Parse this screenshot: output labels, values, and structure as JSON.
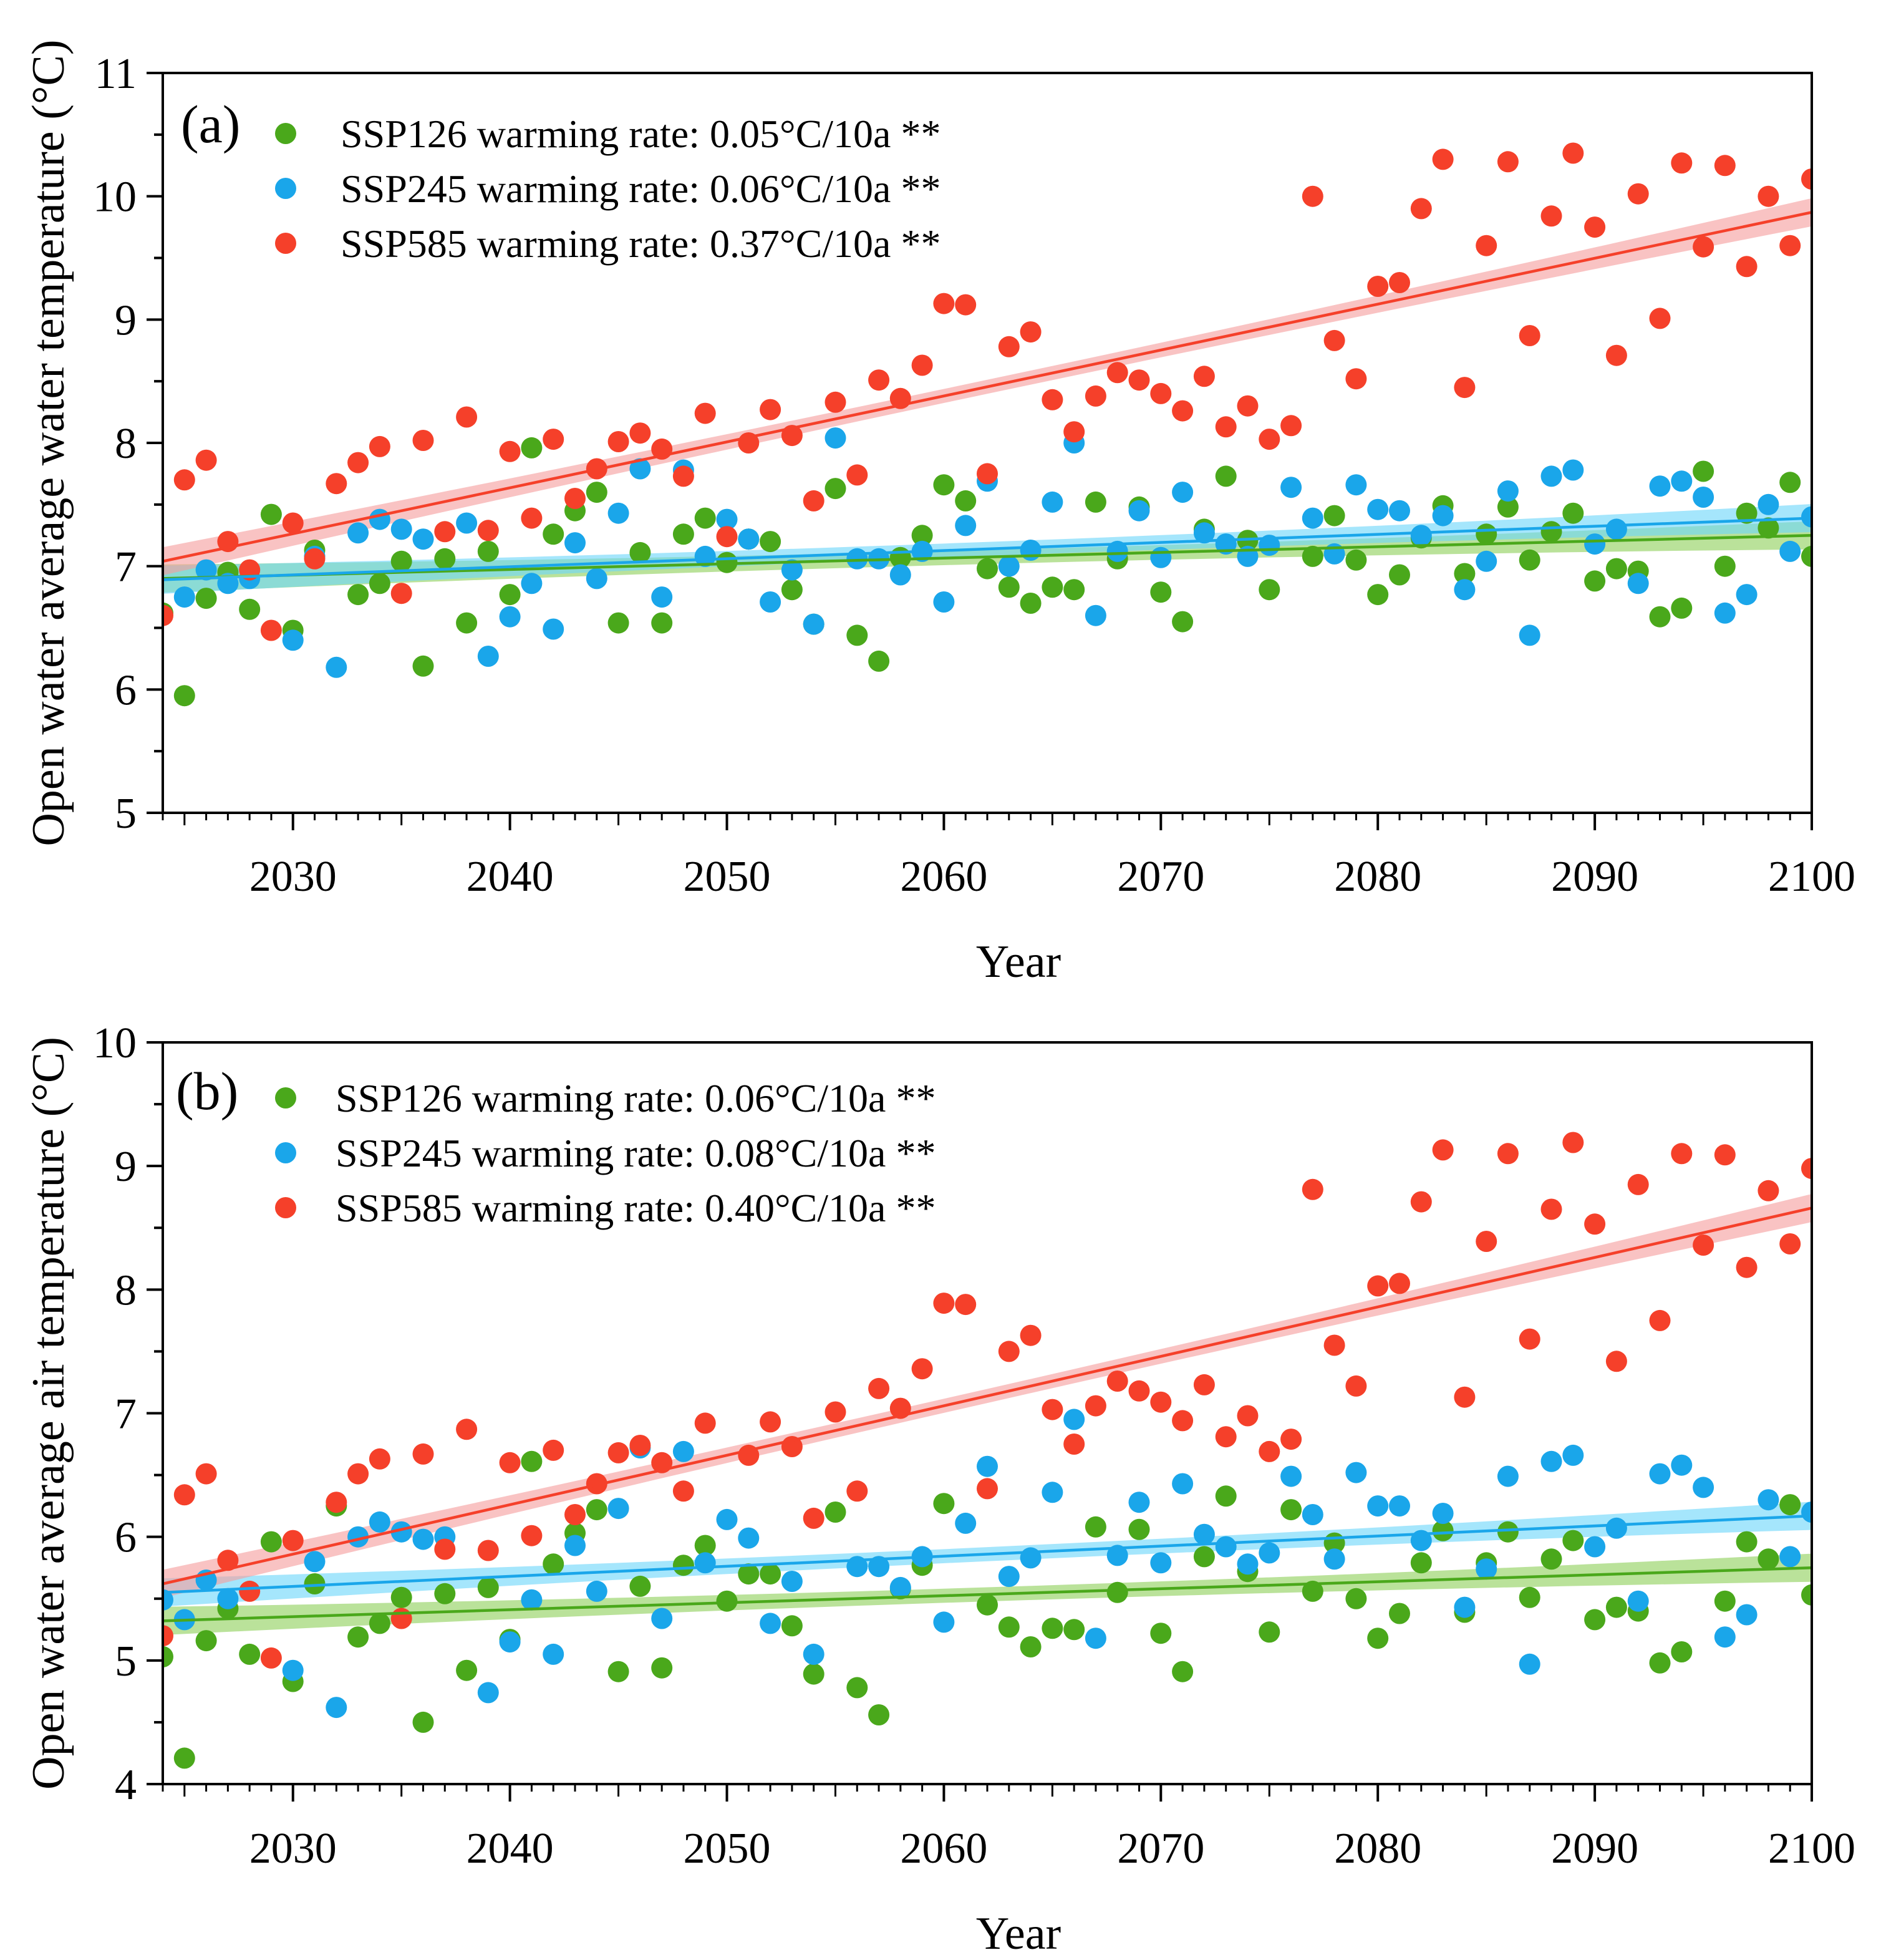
{
  "chart_data": [
    {
      "type": "scatter",
      "panel_label": "(a)",
      "xlabel": "Year",
      "ylabel": "Open water average water temperature (°C)",
      "xlim": [
        2024,
        2100
      ],
      "ylim": [
        5,
        11
      ],
      "xticks": [
        2030,
        2040,
        2050,
        2060,
        2070,
        2080,
        2090,
        2100
      ],
      "yticks": [
        5,
        6,
        7,
        8,
        9,
        10,
        11
      ],
      "legend_position": "top-left",
      "series": [
        {
          "name": "SSP126",
          "legend_label": "SSP126  warming rate: 0.05°C/10a **",
          "color": "#4aa81b",
          "band_color": "#8fd15c",
          "fit": {
            "start": 6.9,
            "end": 7.25
          },
          "x": [
            2024,
            2025,
            2026,
            2027,
            2028,
            2029,
            2030,
            2031,
            2033,
            2034,
            2035,
            2036,
            2037,
            2038,
            2039,
            2040,
            2041,
            2042,
            2043,
            2044,
            2045,
            2046,
            2047,
            2048,
            2049,
            2050,
            2051,
            2052,
            2053,
            2054,
            2055,
            2056,
            2057,
            2058,
            2059,
            2060,
            2061,
            2062,
            2063,
            2064,
            2065,
            2066,
            2067,
            2068,
            2069,
            2070,
            2071,
            2072,
            2073,
            2074,
            2075,
            2077,
            2078,
            2079,
            2080,
            2081,
            2082,
            2083,
            2084,
            2085,
            2086,
            2087,
            2088,
            2089,
            2090,
            2091,
            2092,
            2093,
            2094,
            2095,
            2096,
            2097,
            2098,
            2099,
            2100
          ],
          "y": [
            6.62,
            5.95,
            6.74,
            6.95,
            6.65,
            7.42,
            6.48,
            7.13,
            6.77,
            6.86,
            7.04,
            6.19,
            7.06,
            6.54,
            7.12,
            6.77,
            7.96,
            7.26,
            7.45,
            7.6,
            6.54,
            7.11,
            6.54,
            7.26,
            7.39,
            7.03,
            7.22,
            7.2,
            6.81,
            6.53,
            7.63,
            6.44,
            6.23,
            7.07,
            7.25,
            7.66,
            7.53,
            6.98,
            6.83,
            6.7,
            6.83,
            6.81,
            7.52,
            7.06,
            7.48,
            6.79,
            6.55,
            7.3,
            7.73,
            7.21,
            6.81,
            7.08,
            7.41,
            7.05,
            6.77,
            6.93,
            7.23,
            7.49,
            6.94,
            7.26,
            7.48,
            7.05,
            7.28,
            7.43,
            6.88,
            6.98,
            6.96,
            6.59,
            6.66,
            7.77,
            7.0,
            7.43,
            7.31,
            7.68,
            7.08
          ]
        },
        {
          "name": "SSP245",
          "legend_label": "SSP245  warming rate: 0.06°C/10a **",
          "color": "#1aa6ea",
          "band_color": "#6dd6fa",
          "fit": {
            "start": 6.89,
            "end": 7.39
          },
          "x": [
            2025,
            2026,
            2027,
            2028,
            2030,
            2031,
            2032,
            2033,
            2034,
            2035,
            2036,
            2038,
            2039,
            2040,
            2041,
            2042,
            2043,
            2044,
            2045,
            2046,
            2047,
            2048,
            2049,
            2050,
            2051,
            2052,
            2053,
            2054,
            2055,
            2056,
            2057,
            2058,
            2059,
            2060,
            2061,
            2062,
            2063,
            2064,
            2065,
            2066,
            2067,
            2068,
            2069,
            2070,
            2071,
            2072,
            2073,
            2074,
            2075,
            2076,
            2077,
            2078,
            2079,
            2080,
            2081,
            2082,
            2083,
            2084,
            2085,
            2086,
            2087,
            2088,
            2089,
            2090,
            2091,
            2092,
            2093,
            2094,
            2095,
            2096,
            2097,
            2098,
            2099,
            2100
          ],
          "y": [
            6.75,
            6.97,
            6.86,
            6.9,
            6.4,
            7.08,
            6.18,
            7.27,
            7.38,
            7.3,
            7.22,
            7.35,
            6.27,
            6.59,
            6.86,
            6.49,
            7.19,
            6.9,
            7.43,
            7.79,
            6.75,
            7.78,
            7.08,
            7.38,
            7.22,
            6.71,
            6.97,
            6.53,
            8.04,
            7.06,
            7.06,
            6.93,
            7.12,
            6.71,
            7.33,
            7.69,
            7.0,
            7.13,
            7.52,
            8.0,
            6.6,
            7.12,
            7.45,
            7.07,
            7.6,
            7.27,
            7.18,
            7.08,
            7.17,
            7.64,
            7.39,
            7.1,
            7.66,
            7.46,
            7.45,
            7.25,
            7.41,
            6.81,
            7.04,
            7.61,
            6.44,
            7.73,
            7.78,
            7.18,
            7.3,
            6.86,
            7.65,
            7.69,
            7.56,
            6.62,
            6.77,
            7.5,
            7.12,
            7.4
          ]
        },
        {
          "name": "SSP585",
          "legend_label": "SSP585  warming rate: 0.37°C/10a **",
          "color": "#f5402a",
          "band_color": "#f59e9e",
          "fit": {
            "start": 7.04,
            "end": 9.87
          },
          "x": [
            2024,
            2025,
            2026,
            2027,
            2028,
            2029,
            2030,
            2031,
            2032,
            2033,
            2034,
            2035,
            2036,
            2037,
            2038,
            2039,
            2040,
            2041,
            2042,
            2043,
            2044,
            2045,
            2046,
            2047,
            2048,
            2049,
            2050,
            2051,
            2052,
            2053,
            2054,
            2055,
            2056,
            2057,
            2058,
            2059,
            2060,
            2061,
            2062,
            2063,
            2064,
            2065,
            2066,
            2067,
            2068,
            2069,
            2070,
            2071,
            2072,
            2073,
            2074,
            2075,
            2076,
            2077,
            2078,
            2079,
            2080,
            2081,
            2082,
            2083,
            2084,
            2085,
            2086,
            2087,
            2088,
            2089,
            2090,
            2091,
            2092,
            2093,
            2094,
            2095,
            2096,
            2097,
            2098,
            2099,
            2100
          ],
          "y": [
            6.6,
            7.7,
            7.86,
            7.2,
            6.97,
            6.48,
            7.35,
            7.06,
            7.67,
            7.84,
            7.97,
            6.78,
            8.02,
            7.28,
            8.21,
            7.29,
            7.93,
            7.39,
            8.03,
            7.55,
            7.79,
            8.01,
            8.08,
            7.95,
            7.73,
            8.24,
            7.24,
            8.0,
            8.27,
            8.06,
            7.53,
            8.33,
            7.74,
            8.51,
            8.36,
            8.63,
            9.13,
            9.12,
            7.75,
            8.78,
            8.9,
            8.35,
            8.09,
            8.38,
            8.57,
            8.51,
            8.4,
            8.26,
            8.54,
            8.13,
            8.3,
            8.03,
            8.14,
            10.0,
            8.83,
            8.52,
            9.27,
            9.3,
            9.9,
            10.3,
            8.45,
            9.6,
            10.28,
            8.87,
            9.84,
            10.35,
            9.75,
            8.71,
            10.02,
            9.01,
            10.27,
            9.59,
            10.25,
            9.43,
            10.0,
            9.6,
            10.14
          ]
        }
      ]
    },
    {
      "type": "scatter",
      "panel_label": "(b)",
      "xlabel": "Year",
      "ylabel": "Open water average air temperature (°C)",
      "xlim": [
        2024,
        2100
      ],
      "ylim": [
        4,
        10
      ],
      "xticks": [
        2030,
        2040,
        2050,
        2060,
        2070,
        2080,
        2090,
        2100
      ],
      "yticks": [
        4,
        5,
        6,
        7,
        8,
        9,
        10
      ],
      "legend_position": "top-left",
      "series": [
        {
          "name": "SSP126",
          "legend_label": "SSP126  warming rate: 0.06°C/10a **",
          "color": "#4aa81b",
          "band_color": "#8fd15c",
          "fit": {
            "start": 5.32,
            "end": 5.75
          },
          "x": [
            2024,
            2025,
            2026,
            2027,
            2028,
            2029,
            2030,
            2031,
            2032,
            2033,
            2034,
            2035,
            2036,
            2037,
            2038,
            2039,
            2040,
            2041,
            2042,
            2043,
            2044,
            2045,
            2046,
            2047,
            2048,
            2049,
            2050,
            2051,
            2052,
            2053,
            2054,
            2055,
            2056,
            2057,
            2058,
            2059,
            2060,
            2062,
            2063,
            2064,
            2065,
            2066,
            2067,
            2068,
            2069,
            2070,
            2071,
            2072,
            2073,
            2074,
            2075,
            2076,
            2077,
            2078,
            2079,
            2080,
            2081,
            2082,
            2083,
            2084,
            2085,
            2086,
            2087,
            2088,
            2089,
            2090,
            2091,
            2092,
            2093,
            2094,
            2096,
            2097,
            2098,
            2099,
            2100
          ],
          "y": [
            5.03,
            4.21,
            5.16,
            5.42,
            5.05,
            5.96,
            4.83,
            5.62,
            6.25,
            5.19,
            5.3,
            5.51,
            4.5,
            5.54,
            4.92,
            5.59,
            5.17,
            6.61,
            5.78,
            6.03,
            6.22,
            4.91,
            5.6,
            4.94,
            5.77,
            5.93,
            5.48,
            5.7,
            5.7,
            5.28,
            4.89,
            6.2,
            4.78,
            4.56,
            5.58,
            5.77,
            6.27,
            5.45,
            5.27,
            5.11,
            5.26,
            5.25,
            6.08,
            5.55,
            6.06,
            5.22,
            4.91,
            5.84,
            6.33,
            5.72,
            5.23,
            6.22,
            5.56,
            5.95,
            5.5,
            5.18,
            5.38,
            5.79,
            6.05,
            5.39,
            5.79,
            6.04,
            5.51,
            5.82,
            5.97,
            5.33,
            5.43,
            5.4,
            4.98,
            5.07,
            5.48,
            5.96,
            5.82,
            6.26,
            5.53
          ]
        },
        {
          "name": "SSP245",
          "legend_label": "SSP245  warming rate: 0.08°C/10a **",
          "color": "#1aa6ea",
          "band_color": "#6dd6fa",
          "fit": {
            "start": 5.55,
            "end": 6.17
          },
          "x": [
            2024,
            2025,
            2026,
            2027,
            2030,
            2031,
            2032,
            2033,
            2034,
            2035,
            2036,
            2037,
            2039,
            2040,
            2041,
            2042,
            2043,
            2044,
            2045,
            2046,
            2047,
            2048,
            2049,
            2050,
            2051,
            2052,
            2053,
            2054,
            2056,
            2057,
            2058,
            2059,
            2060,
            2061,
            2062,
            2063,
            2064,
            2065,
            2066,
            2067,
            2068,
            2069,
            2070,
            2071,
            2072,
            2073,
            2074,
            2075,
            2076,
            2077,
            2078,
            2079,
            2080,
            2081,
            2082,
            2083,
            2084,
            2085,
            2086,
            2087,
            2088,
            2089,
            2090,
            2091,
            2092,
            2093,
            2094,
            2095,
            2096,
            2097,
            2098,
            2099,
            2100
          ],
          "y": [
            5.49,
            5.33,
            5.65,
            5.5,
            4.92,
            5.8,
            4.62,
            6.0,
            6.12,
            6.04,
            5.98,
            6.0,
            4.74,
            5.15,
            5.49,
            5.05,
            5.93,
            5.56,
            6.23,
            6.72,
            5.34,
            6.69,
            5.79,
            6.14,
            5.99,
            5.3,
            5.64,
            5.05,
            5.76,
            5.76,
            5.59,
            5.84,
            5.31,
            6.11,
            6.57,
            5.68,
            5.83,
            6.36,
            6.95,
            5.18,
            5.85,
            6.28,
            5.79,
            6.43,
            6.02,
            5.92,
            5.78,
            5.87,
            6.49,
            6.18,
            5.82,
            6.52,
            6.25,
            6.25,
            5.97,
            6.19,
            5.43,
            5.74,
            6.49,
            4.97,
            6.61,
            6.66,
            5.92,
            6.07,
            5.48,
            6.51,
            6.58,
            6.4,
            5.19,
            5.37,
            6.3,
            5.84,
            6.2
          ]
        },
        {
          "name": "SSP585",
          "legend_label": "SSP585  warming rate: 0.40°C/10a **",
          "color": "#f5402a",
          "band_color": "#f59e9e",
          "fit": {
            "start": 5.62,
            "end": 8.66
          },
          "x": [
            2024,
            2025,
            2026,
            2027,
            2028,
            2029,
            2030,
            2032,
            2033,
            2034,
            2035,
            2036,
            2037,
            2038,
            2039,
            2040,
            2041,
            2042,
            2043,
            2044,
            2045,
            2046,
            2047,
            2048,
            2049,
            2051,
            2052,
            2053,
            2054,
            2055,
            2056,
            2057,
            2058,
            2059,
            2060,
            2061,
            2062,
            2063,
            2064,
            2065,
            2066,
            2067,
            2068,
            2069,
            2070,
            2071,
            2072,
            2073,
            2074,
            2075,
            2076,
            2077,
            2078,
            2079,
            2080,
            2081,
            2082,
            2083,
            2084,
            2085,
            2086,
            2087,
            2088,
            2089,
            2090,
            2091,
            2092,
            2093,
            2094,
            2095,
            2096,
            2097,
            2098,
            2099,
            2100
          ],
          "y": [
            5.2,
            6.34,
            6.51,
            5.81,
            5.56,
            5.02,
            5.97,
            6.28,
            6.51,
            6.63,
            5.34,
            6.67,
            5.9,
            6.87,
            5.89,
            6.6,
            6.01,
            6.7,
            6.18,
            6.43,
            6.68,
            6.74,
            6.6,
            6.37,
            6.92,
            6.66,
            6.93,
            6.73,
            6.15,
            7.01,
            6.37,
            7.2,
            7.04,
            7.36,
            7.89,
            7.88,
            6.39,
            7.5,
            7.63,
            7.03,
            6.75,
            7.06,
            7.26,
            7.18,
            7.09,
            6.94,
            7.23,
            6.81,
            6.98,
            6.69,
            6.79,
            8.81,
            7.55,
            7.22,
            8.03,
            8.05,
            8.71,
            9.13,
            7.13,
            8.39,
            9.1,
            7.6,
            8.65,
            9.19,
            8.53,
            7.42,
            8.85,
            7.75,
            9.1,
            8.36,
            9.09,
            8.18,
            8.8,
            8.37,
            8.98
          ]
        }
      ]
    }
  ]
}
